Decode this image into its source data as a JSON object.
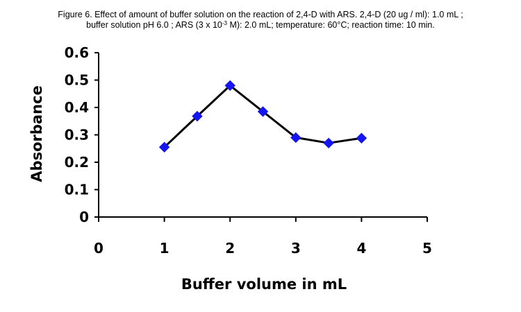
{
  "caption": {
    "line1": "Figure 6. Effect of amount of buffer solution on the reaction of 2,4-D with ARS. 2,4-D (20 ug / ml): 1.0 mL ;",
    "line2_before": "buffer solution pH 6.0 ; ARS (3 x 10",
    "line2_sup": "-3",
    "line2_after": " M): 2.0 mL; temperature: 60°C; reaction time: 10 min."
  },
  "chart_data": {
    "type": "line",
    "title": "",
    "xlabel": "Buffer volume in mL",
    "ylabel": "Absorbance",
    "xlim": [
      0,
      5
    ],
    "ylim": [
      0,
      0.6
    ],
    "xticks": [
      0,
      1,
      2,
      3,
      4,
      5
    ],
    "xtick_labels": [
      "0",
      "1",
      "2",
      "3",
      "4",
      "5"
    ],
    "yticks": [
      0,
      0.1,
      0.2,
      0.3,
      0.4,
      0.5,
      0.6
    ],
    "ytick_labels": [
      "0",
      "0.1",
      "0.2",
      "0.3",
      "0.4",
      "0.5",
      "0.6"
    ],
    "grid": false,
    "legend": "none",
    "series": [
      {
        "x": [
          1,
          1.5,
          2,
          2.5,
          3,
          3.5,
          4
        ],
        "y": [
          0.255,
          0.368,
          0.48,
          0.385,
          0.29,
          0.27,
          0.288
        ],
        "line_color": "#000000",
        "marker": "diamond",
        "marker_color": "#1515f0"
      }
    ]
  }
}
